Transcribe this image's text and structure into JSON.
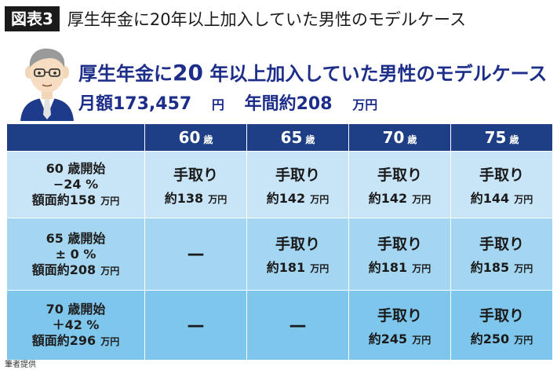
{
  "figure": {
    "badge": "図表3",
    "title": "厚生年金に20年以上加入していた男性のモデルケース"
  },
  "headline": {
    "line1_pre": "厚生年金に",
    "line1_num": "20",
    "line1_post": " 年以上加入していた男性のモデルケース",
    "monthly_label": "月額173,457",
    "monthly_unit": "円",
    "annual_label": "年間約208",
    "annual_unit": "万円"
  },
  "table": {
    "columns": [
      {
        "num": "60",
        "unit": "歳"
      },
      {
        "num": "65",
        "unit": "歳"
      },
      {
        "num": "70",
        "unit": "歳"
      },
      {
        "num": "75",
        "unit": "歳"
      }
    ],
    "rows": [
      {
        "start": "60 歳開始",
        "rate": "−24 %",
        "face": "額面約158",
        "face_unit": "万円",
        "cells": [
          {
            "label": "手取り",
            "amount": "約138",
            "unit": "万円"
          },
          {
            "label": "手取り",
            "amount": "約142",
            "unit": "万円"
          },
          {
            "label": "手取り",
            "amount": "約142",
            "unit": "万円"
          },
          {
            "label": "手取り",
            "amount": "約144",
            "unit": "万円"
          }
        ]
      },
      {
        "start": "65 歳開始",
        "rate": "± 0 %",
        "face": "額面約208",
        "face_unit": "万円",
        "cells": [
          {
            "dash": "—"
          },
          {
            "label": "手取り",
            "amount": "約181",
            "unit": "万円"
          },
          {
            "label": "手取り",
            "amount": "約181",
            "unit": "万円"
          },
          {
            "label": "手取り",
            "amount": "約185",
            "unit": "万円"
          }
        ]
      },
      {
        "start": "70 歳開始",
        "rate": "＋42 %",
        "face": "額面約296",
        "face_unit": "万円",
        "cells": [
          {
            "dash": "—"
          },
          {
            "dash": "—"
          },
          {
            "label": "手取り",
            "amount": "約245",
            "unit": "万円"
          },
          {
            "label": "手取り",
            "amount": "約250",
            "unit": "万円"
          }
        ]
      }
    ]
  },
  "credit": "筆者提供",
  "colors": {
    "header_bg": "#1e3f86",
    "headline": "#1d2d8a",
    "row1": "#c8e4f7",
    "row2": "#a4d5f1",
    "row3": "#7fc6ec"
  }
}
